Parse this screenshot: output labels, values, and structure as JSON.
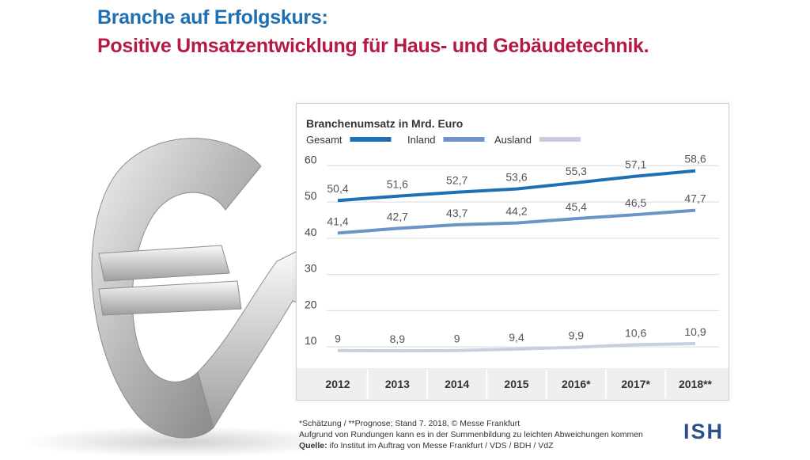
{
  "headline": {
    "line1": "Branche auf Erfolgskurs:",
    "line2": "Positive Umsatzentwicklung für Haus- und Gebäudetechnik."
  },
  "chart_data": {
    "type": "line",
    "title": "Branchenumsatz in Mrd. Euro",
    "categories": [
      "2012",
      "2013",
      "2014",
      "2015",
      "2016*",
      "2017*",
      "2018**"
    ],
    "y_ticks": [
      10,
      20,
      30,
      40,
      50,
      60
    ],
    "ylim": [
      5,
      64
    ],
    "grid": true,
    "legend_position": "top-left",
    "series": [
      {
        "name": "Gesamt",
        "color": "#1f6fb4",
        "values": [
          50.4,
          51.6,
          52.7,
          53.6,
          55.3,
          57.1,
          58.6
        ],
        "labels": [
          "50,4",
          "51,6",
          "52,7",
          "53,6",
          "55,3",
          "57,1",
          "58,6"
        ]
      },
      {
        "name": "Inland",
        "color": "#6b95c8",
        "values": [
          41.4,
          42.7,
          43.7,
          44.2,
          45.4,
          46.5,
          47.7
        ],
        "labels": [
          "41,4",
          "42,7",
          "43,7",
          "44,2",
          "45,4",
          "46,5",
          "47,7"
        ]
      },
      {
        "name": "Ausland",
        "color": "#c7cedf",
        "values": [
          9,
          8.9,
          9,
          9.4,
          9.9,
          10.6,
          10.9
        ],
        "labels": [
          "9",
          "8,9",
          "9",
          "9,4",
          "9,9",
          "10,6",
          "10,9"
        ]
      }
    ]
  },
  "footer": {
    "note1": "*Schätzung / **Prognose; Stand 7. 2018, © Messe Frankfurt",
    "note2": "Aufgrund von Rundungen kann es in der Summenbildung zu leichten Abweichungen kommen",
    "source_label": "Quelle:",
    "source_text": " ifo Institut im Auftrag von Messe Frankfurt / VDS / BDH / VdZ"
  },
  "logo_text": "ISH",
  "colors": {
    "title_blue": "#1f6fb4",
    "title_red": "#b31b45"
  }
}
